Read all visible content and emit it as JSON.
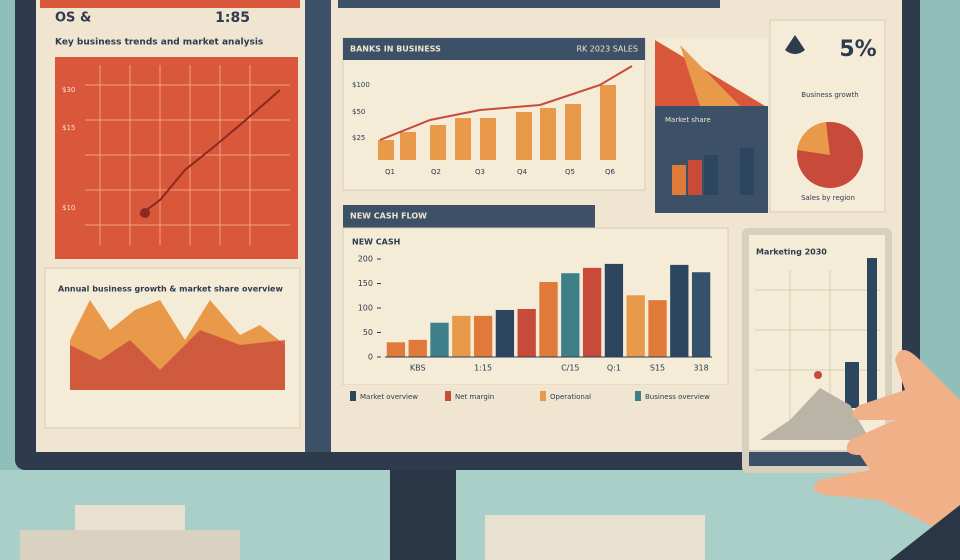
{
  "header_left": "OS &",
  "header_time": "1:85",
  "left_caption": "Key business trends and market analysis",
  "left_chart_labels": [
    "$30",
    "$15",
    "$10"
  ],
  "left_lower_title": "Annual business growth & market share overview",
  "top_chart": {
    "title": "BANKS IN BUSINESS",
    "subtitle": "RK 2023 SALES",
    "ytick_labels": [
      "$100",
      "$50",
      "$25"
    ],
    "x_labels": [
      "Q1",
      "Q2",
      "Q3",
      "Q4",
      "Q5",
      "Q6"
    ]
  },
  "kpi": {
    "value": "5%",
    "caption": "Business growth"
  },
  "mini_caption": "Market share",
  "pie_caption": "Sales by region",
  "main_chart": {
    "type": "bar",
    "header": "NEW CASH FLOW",
    "title": "NEW CASH",
    "categories": [
      null,
      "KBS",
      null,
      null,
      "1:15",
      null,
      null,
      null,
      "C/15",
      null,
      "Q:1",
      null,
      "S15",
      null,
      "318"
    ],
    "values": [
      30,
      35,
      70,
      84,
      84,
      96,
      98,
      153,
      171,
      182,
      190,
      126,
      116,
      188,
      173
    ],
    "colors": [
      "#e07a3a",
      "#e07a3a",
      "#3f7f8a",
      "#e8994a",
      "#e07a3a",
      "#2d4660",
      "#c84a3a",
      "#e07a3a",
      "#3f7f8a",
      "#c84a3a",
      "#2d4660",
      "#e8994a",
      "#e07a3a",
      "#2d4660",
      "#34506b"
    ],
    "ylim": [
      0,
      200
    ],
    "yticks": [
      0,
      50,
      100,
      150,
      200
    ]
  },
  "legend": [
    "Market overview",
    "Net margin",
    "Operational",
    "Business overview"
  ],
  "tablet_title": "Marketing 2030"
}
